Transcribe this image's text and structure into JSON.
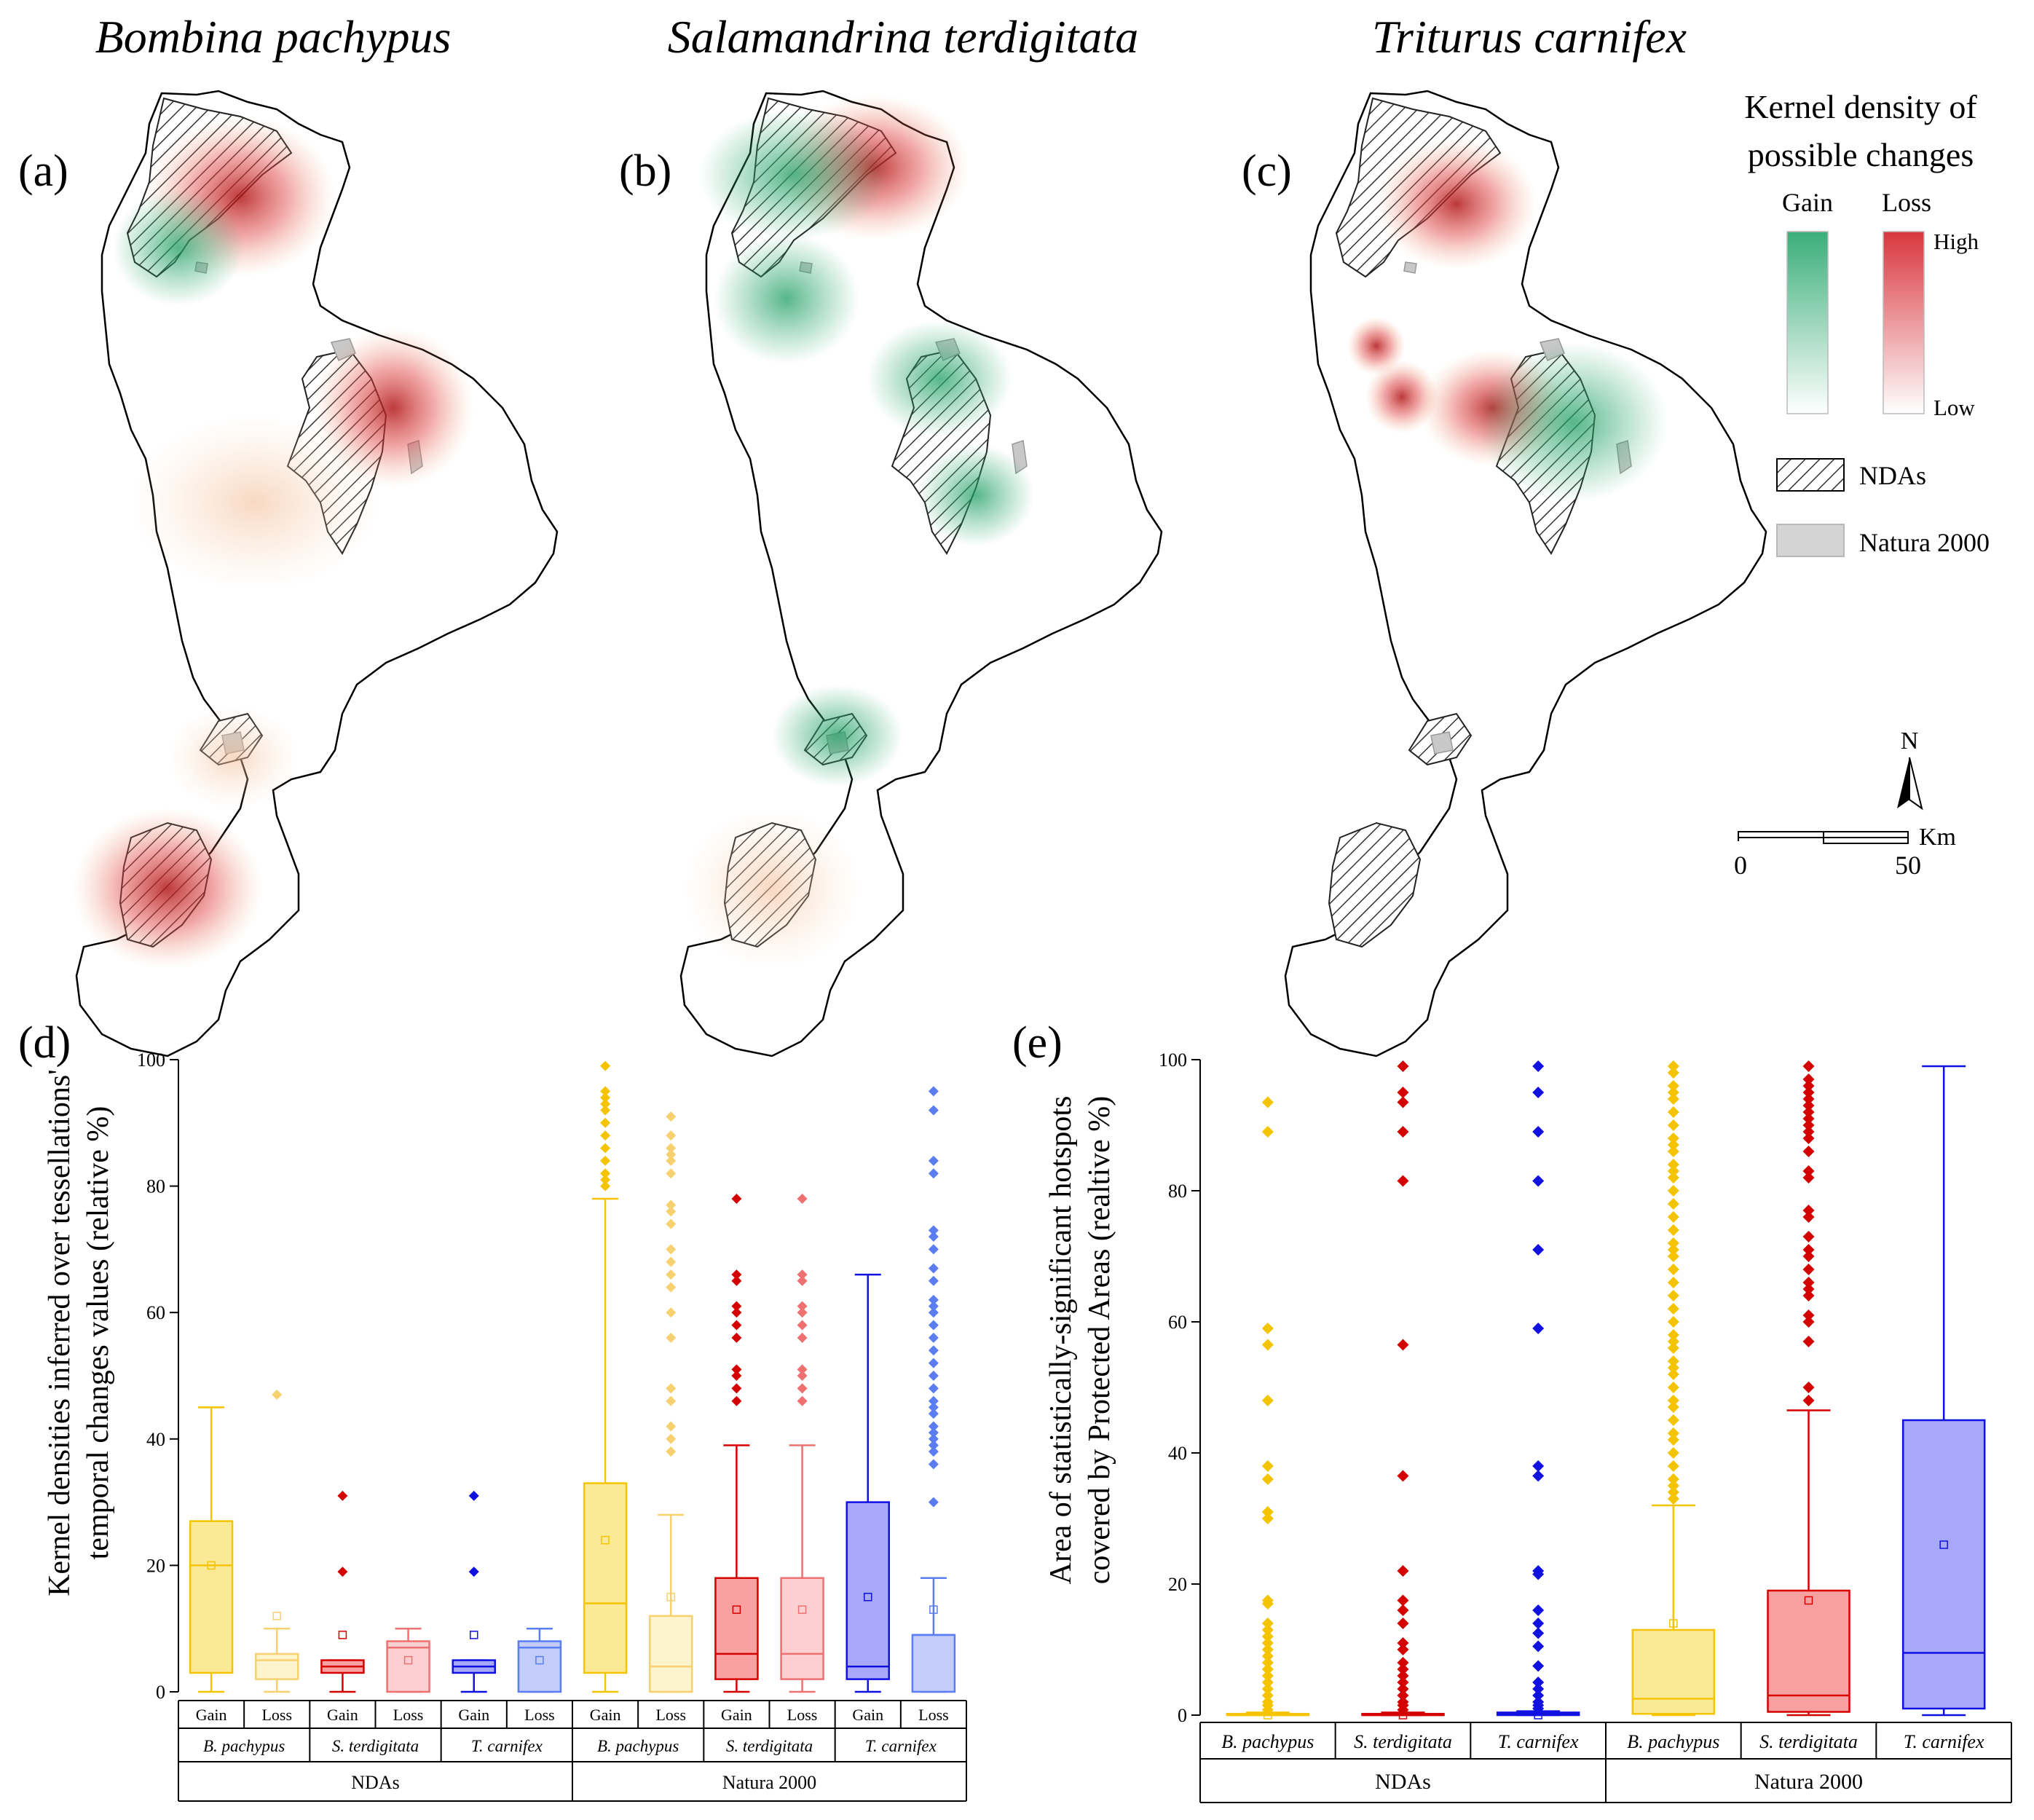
{
  "maps": {
    "titles": [
      "Bombina pachypus",
      "Salamandrina terdigitata",
      "Triturus carnifex"
    ],
    "labels": [
      "(a)",
      "(b)",
      "(c)"
    ]
  },
  "legend": {
    "title_line1": "Kernel density of",
    "title_line2": "possible changes",
    "gain": "Gain",
    "loss": "Loss",
    "high": "High",
    "low": "Low",
    "ndas": "NDAs",
    "natura": "Natura 2000",
    "north": "N",
    "scale_start": "0",
    "scale_end": "50",
    "scale_unit": "Km"
  },
  "colors": {
    "gain": "#3aae7a",
    "loss": "#d9363e",
    "yellow": "#f5c400",
    "red": "#d40000",
    "blue": "#1010e0",
    "outline": "#000000"
  },
  "chart_data": [
    {
      "panel": "(d)",
      "type": "box",
      "ylabel_line1": "Kernel densities inferred over tessellations'",
      "ylabel_line2": "temporal changes values (relative %)",
      "ylim": [
        0,
        100
      ],
      "yticks": [
        "0",
        "20",
        "40",
        "60",
        "80",
        "100"
      ],
      "groups": [
        "NDAs",
        "Natura 2000"
      ],
      "species": [
        "B. pachypus",
        "S. terdigitata",
        "T. carnifex"
      ],
      "categories": [
        "Gain",
        "Loss",
        "Gain",
        "Loss",
        "Gain",
        "Loss",
        "Gain",
        "Loss",
        "Gain",
        "Loss",
        "Gain",
        "Loss"
      ],
      "boxes": [
        {
          "group": "NDAs",
          "species": "B. pachypus",
          "type": "Gain",
          "color": "yellow",
          "fill": true,
          "min": 0,
          "q1": 3,
          "median": 20,
          "q3": 27,
          "max": 45,
          "mean": 20,
          "outliers": []
        },
        {
          "group": "NDAs",
          "species": "B. pachypus",
          "type": "Loss",
          "color": "yellow",
          "fill": false,
          "min": 0,
          "q1": 2,
          "median": 5,
          "q3": 6,
          "max": 10,
          "mean": 12,
          "outliers": [
            47
          ]
        },
        {
          "group": "NDAs",
          "species": "S. terdigitata",
          "type": "Gain",
          "color": "red",
          "fill": true,
          "min": 0,
          "q1": 3,
          "median": 4,
          "q3": 5,
          "max": 5,
          "mean": 9,
          "outliers": [
            19,
            31
          ]
        },
        {
          "group": "NDAs",
          "species": "S. terdigitata",
          "type": "Loss",
          "color": "red",
          "fill": false,
          "min": 0,
          "q1": 0,
          "median": 7,
          "q3": 8,
          "max": 10,
          "mean": 5,
          "outliers": []
        },
        {
          "group": "NDAs",
          "species": "T. carnifex",
          "type": "Gain",
          "color": "blue",
          "fill": true,
          "min": 0,
          "q1": 3,
          "median": 4,
          "q3": 5,
          "max": 5,
          "mean": 9,
          "outliers": [
            19,
            31
          ]
        },
        {
          "group": "NDAs",
          "species": "T. carnifex",
          "type": "Loss",
          "color": "blue",
          "fill": false,
          "min": 0,
          "q1": 0,
          "median": 7,
          "q3": 8,
          "max": 10,
          "mean": 5,
          "outliers": []
        },
        {
          "group": "Natura 2000",
          "species": "B. pachypus",
          "type": "Gain",
          "color": "yellow",
          "fill": true,
          "min": 0,
          "q1": 3,
          "median": 14,
          "q3": 33,
          "max": 78,
          "mean": 24,
          "outliers": [
            80,
            81,
            82,
            84,
            86,
            88,
            90,
            92,
            93,
            94,
            95,
            99
          ]
        },
        {
          "group": "Natura 2000",
          "species": "B. pachypus",
          "type": "Loss",
          "color": "yellow",
          "fill": false,
          "min": 0,
          "q1": 0,
          "median": 4,
          "q3": 12,
          "max": 28,
          "mean": 15,
          "outliers": [
            38,
            40,
            42,
            46,
            48,
            56,
            60,
            64,
            66,
            68,
            70,
            74,
            76,
            77,
            82,
            84,
            85,
            86,
            88,
            91
          ]
        },
        {
          "group": "Natura 2000",
          "species": "S. terdigitata",
          "type": "Gain",
          "color": "red",
          "fill": true,
          "min": 0,
          "q1": 2,
          "median": 6,
          "q3": 18,
          "max": 39,
          "mean": 13,
          "outliers": [
            46,
            48,
            50,
            51,
            56,
            58,
            60,
            61,
            65,
            66,
            78
          ]
        },
        {
          "group": "Natura 2000",
          "species": "S. terdigitata",
          "type": "Loss",
          "color": "red",
          "fill": false,
          "min": 0,
          "q1": 2,
          "median": 6,
          "q3": 18,
          "max": 39,
          "mean": 13,
          "outliers": [
            46,
            48,
            50,
            51,
            56,
            58,
            60,
            61,
            65,
            66,
            78
          ]
        },
        {
          "group": "Natura 2000",
          "species": "T. carnifex",
          "type": "Gain",
          "color": "blue",
          "fill": true,
          "min": 0,
          "q1": 2,
          "median": 4,
          "q3": 30,
          "max": 66,
          "mean": 15,
          "outliers": []
        },
        {
          "group": "Natura 2000",
          "species": "T. carnifex",
          "type": "Loss",
          "color": "blue",
          "fill": false,
          "min": 0,
          "q1": 0,
          "median": 9,
          "q3": 9,
          "max": 18,
          "mean": 13,
          "outliers": [
            30,
            36,
            38,
            39,
            40,
            41,
            42,
            44,
            45,
            46,
            48,
            50,
            52,
            54,
            56,
            58,
            60,
            61,
            62,
            65,
            67,
            70,
            72,
            73,
            82,
            84,
            92,
            95
          ]
        }
      ]
    },
    {
      "panel": "(e)",
      "type": "box",
      "ylabel_line1": "Area of statistically-significant hotspots",
      "ylabel_line2": "covered by Protected Areas (realtive %)",
      "ylim": [
        0,
        100
      ],
      "yticks": [
        "0",
        "20",
        "40",
        "60",
        "80",
        "100"
      ],
      "groups": [
        "NDAs",
        "Natura 2000"
      ],
      "categories": [
        "B. pachypus",
        "S. terdigitata",
        "T. carnifex",
        "B. pachypus",
        "S. terdigitata",
        "T. carnifex"
      ],
      "boxes": [
        {
          "group": "NDAs",
          "species": "B. pachypus",
          "color": "yellow",
          "min": 0,
          "q1": 0,
          "median": 0,
          "q3": 0.2,
          "max": 0.4,
          "mean": 0,
          "outliers": [
            0.8,
            1.5,
            2,
            3,
            4,
            5,
            6,
            7,
            8,
            9,
            10,
            11,
            12,
            13,
            14,
            17,
            17.5,
            30,
            31,
            36,
            38,
            48,
            56.5,
            59,
            89,
            93.5
          ]
        },
        {
          "group": "NDAs",
          "species": "S. terdigitata",
          "color": "red",
          "min": 0,
          "q1": 0,
          "median": 0,
          "q3": 0.2,
          "max": 0.4,
          "mean": 0,
          "outliers": [
            0.8,
            1.5,
            2,
            3,
            4,
            5,
            6,
            7,
            8,
            10,
            11,
            14,
            16,
            17.5,
            22,
            36.5,
            56.5,
            81.5,
            89,
            93.5,
            95,
            99
          ]
        },
        {
          "group": "NDAs",
          "species": "T. carnifex",
          "color": "blue",
          "min": 0,
          "q1": 0,
          "median": 0.2,
          "q3": 0.4,
          "max": 0.6,
          "mean": 0,
          "outliers": [
            1,
            1.5,
            2,
            3,
            4,
            5,
            7.5,
            10.5,
            12.5,
            14,
            16,
            21.5,
            22,
            36.5,
            38,
            59,
            71,
            81.5,
            89,
            95,
            99
          ]
        },
        {
          "group": "Natura 2000",
          "species": "B. pachypus",
          "color": "yellow",
          "min": 0,
          "q1": 0.2,
          "median": 2.5,
          "q3": 13,
          "max": 32,
          "mean": 14,
          "outliers": [
            33,
            34,
            35,
            36,
            38,
            40,
            42,
            43,
            45,
            47,
            48,
            50,
            52,
            53,
            54,
            56,
            57,
            58,
            60,
            62,
            64,
            66,
            68,
            70,
            71,
            72,
            74,
            76,
            78,
            80,
            82,
            83,
            84,
            86,
            87,
            88,
            90,
            92,
            94,
            95,
            96,
            98,
            99
          ]
        },
        {
          "group": "Natura 2000",
          "species": "S. terdigitata",
          "color": "red",
          "min": 0,
          "q1": 0.5,
          "median": 3,
          "q3": 19,
          "max": 46.5,
          "mean": 17.5,
          "outliers": [
            48,
            50,
            57,
            60,
            61,
            64,
            65,
            66,
            68,
            70,
            71,
            73,
            76,
            77,
            82,
            83,
            86,
            88,
            89,
            90,
            91,
            92,
            93,
            94,
            95,
            96,
            97,
            99
          ]
        },
        {
          "group": "Natura 2000",
          "species": "T. carnifex",
          "color": "blue",
          "min": 0,
          "q1": 1,
          "median": 9.5,
          "q3": 45,
          "max": 99,
          "mean": 26,
          "outliers": []
        }
      ]
    }
  ]
}
